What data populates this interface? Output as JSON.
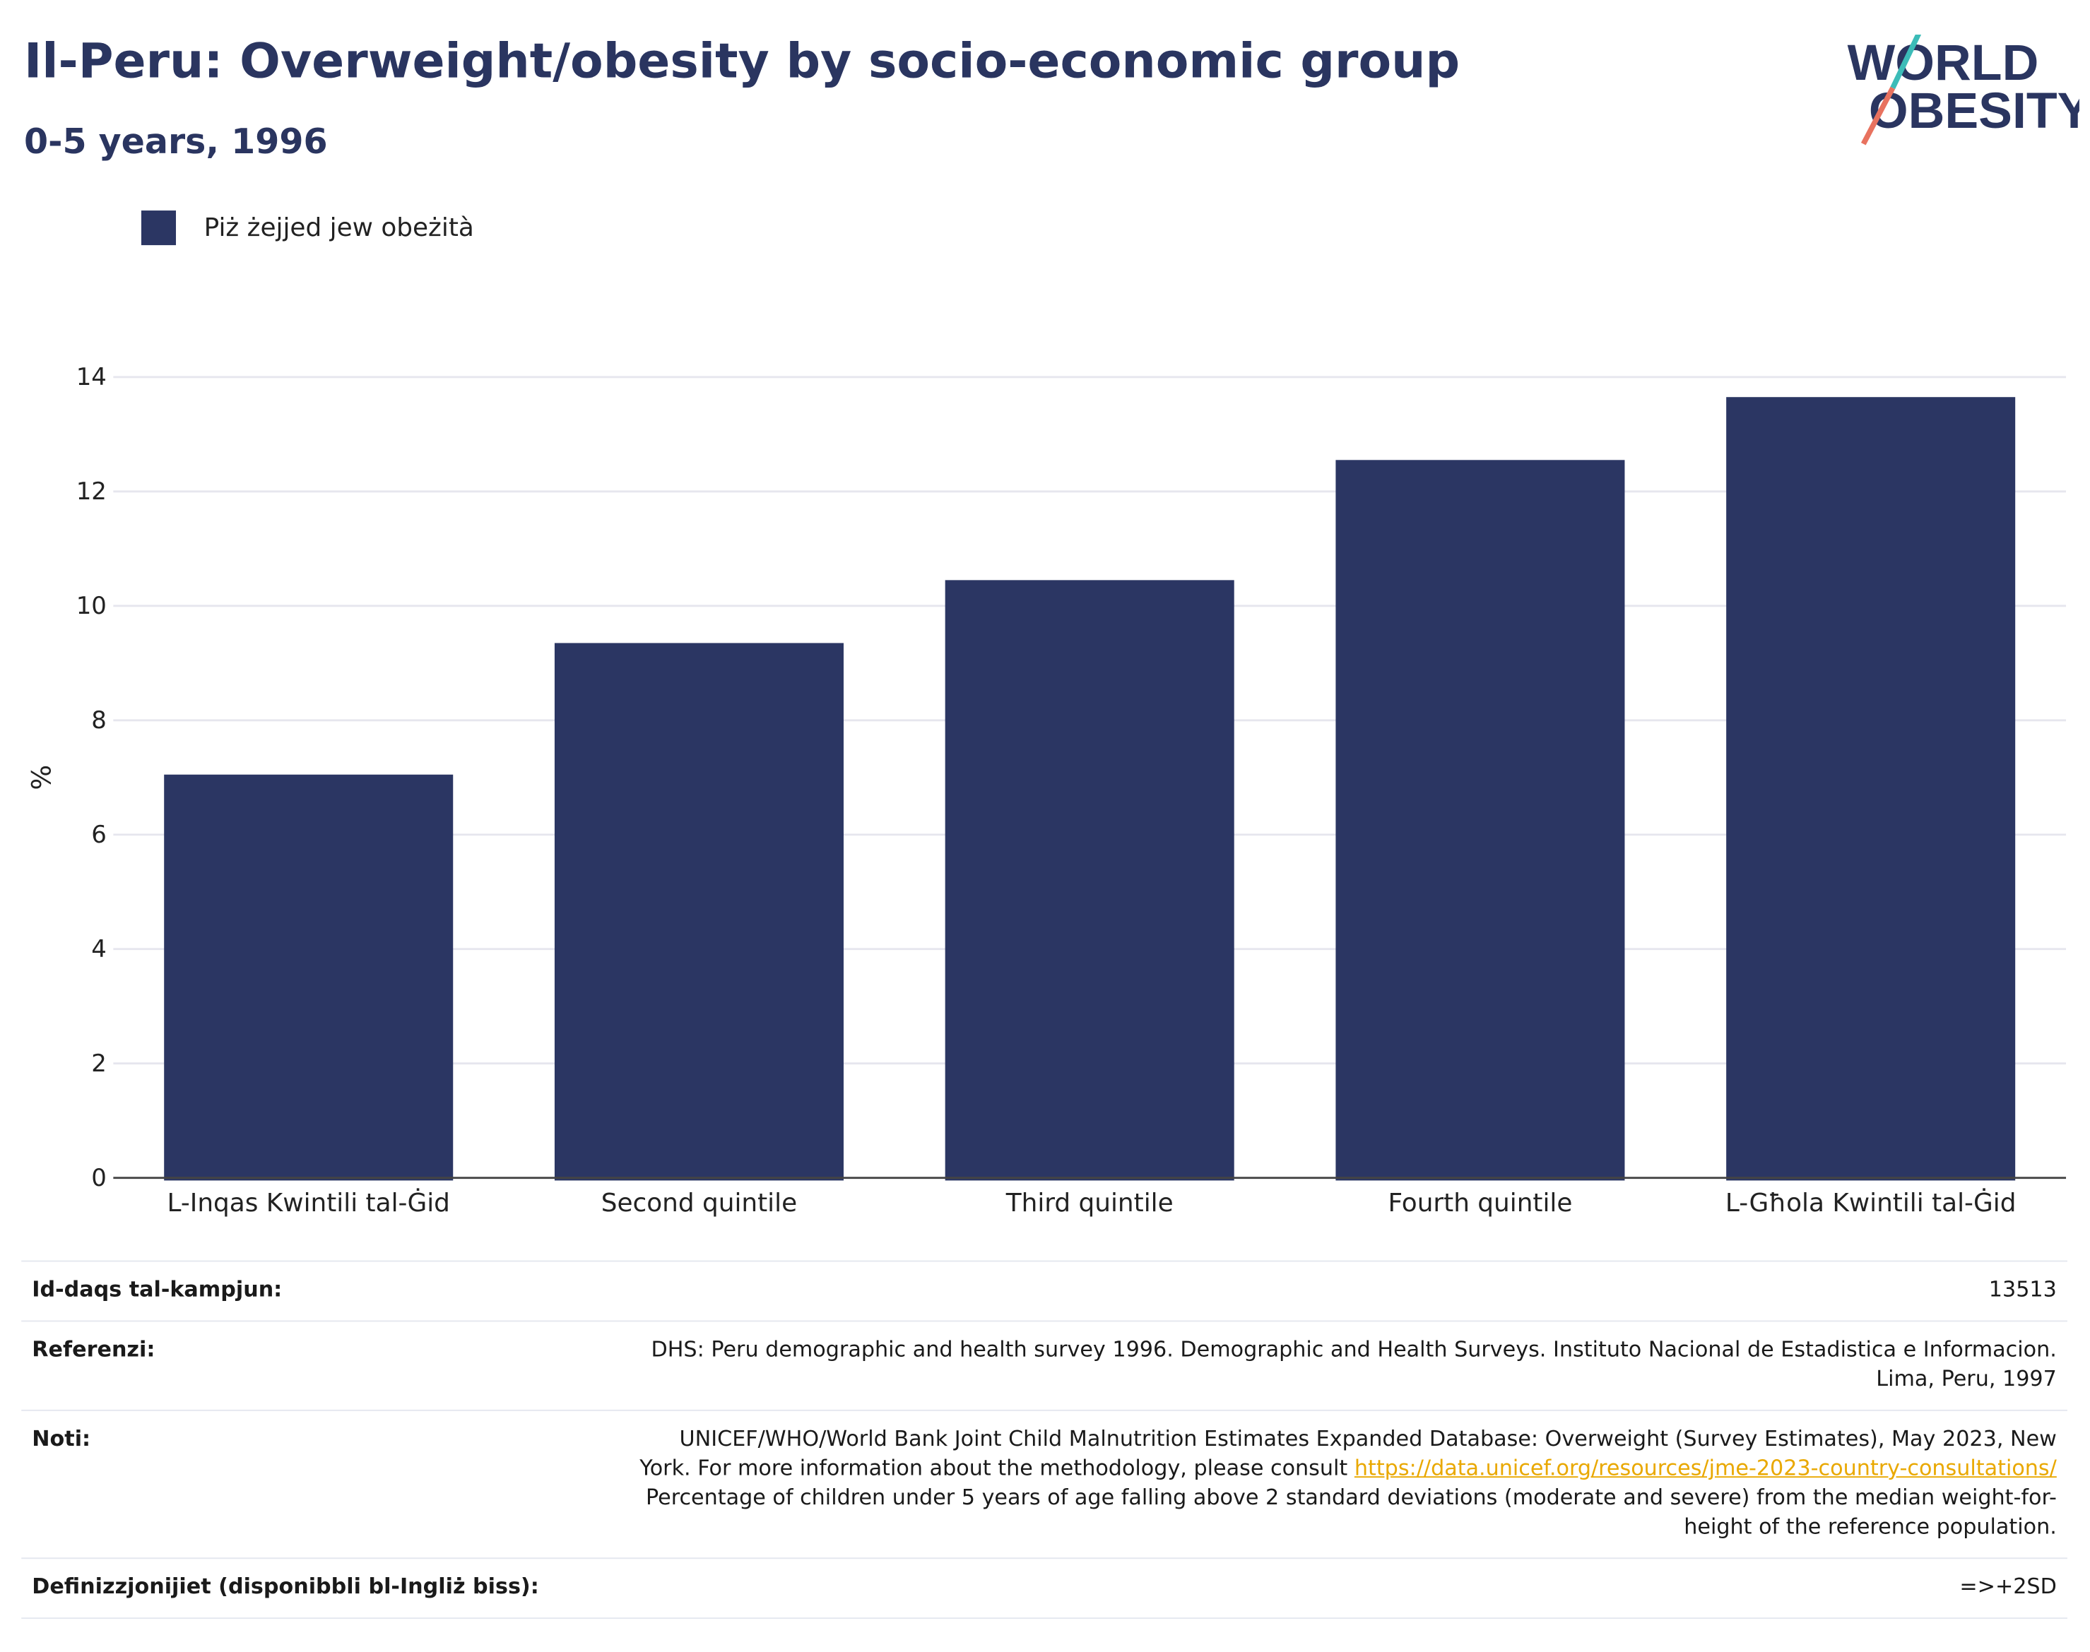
{
  "title": "Il-Peru: Overweight/obesity by socio-economic group",
  "subtitle": "0-5 years, 1996",
  "logo": {
    "line1": "WORLD",
    "line2": "OBESITY",
    "slash_colors": [
      "#3cbcb8",
      "#e8725f"
    ]
  },
  "colors": {
    "bar": "#2b3663",
    "title": "#2a3560",
    "grid": "#e6e6ee",
    "link": "#e9a800"
  },
  "legend": {
    "label": "Piż żejjed jew obeżità"
  },
  "chart_data": {
    "type": "bar",
    "categories": [
      "L-Inqas Kwintili tal-Ġid",
      "Second quintile",
      "Third quintile",
      "Fourth quintile",
      "L-Għola Kwintili tal-Ġid"
    ],
    "series": [
      {
        "name": "Piż żejjed jew obeżità",
        "values": [
          7.05,
          9.35,
          10.45,
          12.55,
          13.65
        ]
      }
    ],
    "ylabel": "%",
    "xlabel": "",
    "ylim": [
      0,
      14
    ],
    "yticks": [
      0,
      2,
      4,
      6,
      8,
      10,
      12,
      14
    ],
    "grid": true,
    "legend_position": "top-left"
  },
  "meta": [
    {
      "label": "Id-daqs tal-kampjun:",
      "lines": [
        "13513"
      ]
    },
    {
      "label": "Referenzi:",
      "lines": [
        "DHS: Peru demographic and health survey 1996. Demographic and Health Surveys. Instituto Nacional de Estadistica e Informacion.",
        "Lima, Peru, 1997"
      ]
    },
    {
      "label": "Noti:",
      "line1": "UNICEF/WHO/World Bank Joint Child Malnutrition Estimates Expanded Database: Overweight (Survey Estimates), May 2023, New",
      "line2_pre": "York. For more information about the methodology, please consult ",
      "link": "https://data.unicef.org/resources/jme-2023-country-consultations/",
      "line3": "Percentage of children under 5 years of age falling above 2 standard deviations (moderate and severe) from the median weight-for-",
      "line4": "height of the reference population."
    },
    {
      "label": "Definizzjonijiet (disponibbli bl-Ingliż biss):",
      "lines": [
        "=>+2SD"
      ]
    }
  ]
}
